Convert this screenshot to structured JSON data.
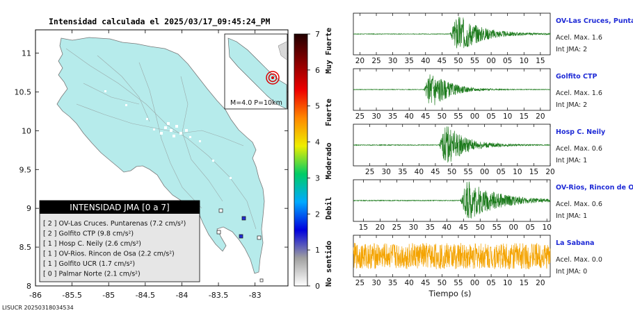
{
  "map": {
    "title": "Intensidad calculada el 2025/03/17_09:45:24_PM",
    "x_ticks": [
      "-86",
      "-85.5",
      "-85",
      "-84.5",
      "-84",
      "-83.5",
      "-83"
    ],
    "y_ticks": [
      "11",
      "10.5",
      "10",
      "9.5",
      "9",
      "8.5",
      "8"
    ],
    "xlim": [
      -86,
      -82.55
    ],
    "ylim": [
      8,
      11.3
    ],
    "inset_label": "M=4.0 P=10km",
    "footer": "LISUCR 20250318034534"
  },
  "legend": {
    "title": "INTENSIDAD JMA [0 a 7]",
    "items": [
      {
        "text": "[ 2 ]  OV-Las Cruces. Puntarenas (7.2 cm/s²)"
      },
      {
        "text": "[ 2 ]  Golfito CTP (9.8 cm/s²)"
      },
      {
        "text": "[ 1 ]  Hosp C. Neily (2.6 cm/s²)"
      },
      {
        "text": "[ 1 ]  OV-Rios. Rincon de Osa (2.2 cm/s²)"
      },
      {
        "text": "[ 1 ]  Golfito UCR (1.7 cm/s²)"
      },
      {
        "text": "[ 0 ]  Palmar Norte (2.1 cm/s²)"
      }
    ]
  },
  "colorbar": {
    "ticks": [
      "0",
      "1",
      "2",
      "3",
      "4",
      "5",
      "6",
      "7"
    ],
    "categories": [
      "No sentido",
      "Debil",
      "Moderado",
      "Fuerte",
      "Muy Fuerte"
    ],
    "colors": [
      "#ffffff",
      "#a0a0a0",
      "#0000dd",
      "#00aaff",
      "#00cc66",
      "#eeee00",
      "#ff8800",
      "#ee0000",
      "#880000",
      "#220000"
    ]
  },
  "traces": [
    {
      "name": "OV-Las Cruces, Puntar",
      "acel": "Acel. Max. 1.6",
      "int": "Int JMA: 2",
      "color": "#1b7a1b",
      "ticks": [
        "20",
        "25",
        "30",
        "35",
        "40",
        "45",
        "50",
        "55",
        "00",
        "05",
        "10",
        "15"
      ],
      "tick_start": 20,
      "window": [
        18,
        78
      ],
      "onset": 47.5,
      "peak": 1.0,
      "decay": 7.0,
      "noise": 0.015
    },
    {
      "name": "Golfito CTP",
      "acel": "Acel. Max. 1.6",
      "int": "Int JMA: 2",
      "color": "#1b7a1b",
      "ticks": [
        "25",
        "30",
        "35",
        "40",
        "45",
        "50",
        "55",
        "00",
        "05",
        "10",
        "15",
        "20"
      ],
      "tick_start": 25,
      "window": [
        23,
        83
      ],
      "onset": 44.5,
      "peak": 1.0,
      "decay": 5.0,
      "noise": 0.015
    },
    {
      "name": "Hosp C. Neily",
      "acel": "Acel. Max. 0.6",
      "int": "Int JMA: 1",
      "color": "#1b7a1b",
      "ticks": [
        "25",
        "30",
        "35",
        "40",
        "45",
        "50",
        "55",
        "00",
        "05",
        "10",
        "15",
        "20"
      ],
      "tick_start": 25,
      "window": [
        20,
        80
      ],
      "onset": 46,
      "peak": 1.0,
      "decay": 6.0,
      "noise": 0.02
    },
    {
      "name": "OV-Rios, Rincon de Os",
      "acel": "Acel. Max. 0.6",
      "int": "Int JMA: 1",
      "color": "#1b7a1b",
      "ticks": [
        "15",
        "20",
        "25",
        "30",
        "35",
        "40",
        "45",
        "50",
        "55",
        "00",
        "05",
        "10"
      ],
      "tick_start": 15,
      "window": [
        12,
        71
      ],
      "onset": 44,
      "peak": 1.0,
      "decay": 9.0,
      "noise": 0.02
    },
    {
      "name": "La Sabana",
      "acel": "Acel. Max. 0.0",
      "int": "Int JMA: 0",
      "color": "#f4a300",
      "ticks": [
        "25",
        "30",
        "35",
        "40",
        "45",
        "50",
        "55",
        "00",
        "05",
        "10",
        "15",
        "20"
      ],
      "tick_start": 25,
      "window": [
        23,
        83
      ],
      "onset": 0,
      "peak": 0.0,
      "decay": 1.0,
      "noise": 0.7
    }
  ],
  "traces_xlabel": "Tiempo (s)"
}
